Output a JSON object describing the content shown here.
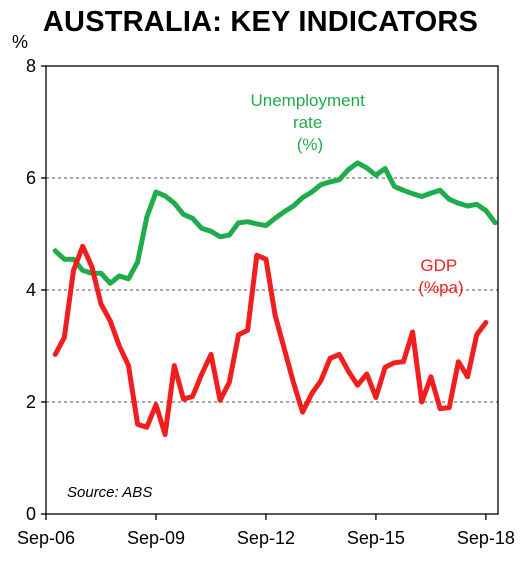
{
  "chart_data": {
    "type": "line",
    "title": "AUSTRALIA: KEY INDICATORS",
    "ylabel": "%",
    "xlabel": "",
    "ylim": [
      0,
      8
    ],
    "xlim": [
      2006.67,
      2019.0
    ],
    "yticks": [
      0,
      2,
      4,
      6,
      8
    ],
    "xticks": [
      {
        "label": "Sep-06",
        "x": 2006.67
      },
      {
        "label": "Sep-09",
        "x": 2009.67
      },
      {
        "label": "Sep-12",
        "x": 2012.67
      },
      {
        "label": "Sep-15",
        "x": 2015.67
      },
      {
        "label": "Sep-18",
        "x": 2018.67
      }
    ],
    "grid": "horizontal dashed at 2, 4, 6",
    "source": "Source: ABS",
    "series": [
      {
        "name": "Unemployment rate (%)",
        "label_lines": [
          "Unemployment",
          "rate",
          "(%)"
        ],
        "color": "#1fac4b",
        "points": [
          [
            2006.92,
            4.7
          ],
          [
            2007.17,
            4.55
          ],
          [
            2007.42,
            4.55
          ],
          [
            2007.67,
            4.35
          ],
          [
            2007.92,
            4.3
          ],
          [
            2008.17,
            4.3
          ],
          [
            2008.42,
            4.12
          ],
          [
            2008.67,
            4.25
          ],
          [
            2008.92,
            4.2
          ],
          [
            2009.17,
            4.5
          ],
          [
            2009.42,
            5.3
          ],
          [
            2009.67,
            5.75
          ],
          [
            2009.92,
            5.68
          ],
          [
            2010.17,
            5.55
          ],
          [
            2010.42,
            5.35
          ],
          [
            2010.67,
            5.28
          ],
          [
            2010.92,
            5.1
          ],
          [
            2011.17,
            5.05
          ],
          [
            2011.42,
            4.95
          ],
          [
            2011.67,
            4.98
          ],
          [
            2011.92,
            5.2
          ],
          [
            2012.17,
            5.22
          ],
          [
            2012.42,
            5.18
          ],
          [
            2012.67,
            5.15
          ],
          [
            2012.92,
            5.28
          ],
          [
            2013.17,
            5.4
          ],
          [
            2013.42,
            5.5
          ],
          [
            2013.67,
            5.65
          ],
          [
            2013.92,
            5.75
          ],
          [
            2014.17,
            5.88
          ],
          [
            2014.42,
            5.93
          ],
          [
            2014.67,
            5.97
          ],
          [
            2014.92,
            6.15
          ],
          [
            2015.17,
            6.27
          ],
          [
            2015.42,
            6.18
          ],
          [
            2015.67,
            6.05
          ],
          [
            2015.92,
            6.17
          ],
          [
            2016.17,
            5.85
          ],
          [
            2016.42,
            5.78
          ],
          [
            2016.67,
            5.72
          ],
          [
            2016.92,
            5.67
          ],
          [
            2017.17,
            5.73
          ],
          [
            2017.42,
            5.78
          ],
          [
            2017.67,
            5.62
          ],
          [
            2017.92,
            5.55
          ],
          [
            2018.17,
            5.5
          ],
          [
            2018.42,
            5.53
          ],
          [
            2018.67,
            5.42
          ],
          [
            2018.92,
            5.2
          ]
        ]
      },
      {
        "name": "GDP (%pa)",
        "label_lines": [
          "GDP",
          "(%pa)"
        ],
        "color": "#f01e1e",
        "points": [
          [
            2006.92,
            2.85
          ],
          [
            2007.17,
            3.15
          ],
          [
            2007.42,
            4.35
          ],
          [
            2007.67,
            4.78
          ],
          [
            2007.92,
            4.42
          ],
          [
            2008.17,
            3.75
          ],
          [
            2008.42,
            3.45
          ],
          [
            2008.67,
            3.0
          ],
          [
            2008.92,
            2.65
          ],
          [
            2009.17,
            1.6
          ],
          [
            2009.42,
            1.55
          ],
          [
            2009.67,
            1.95
          ],
          [
            2009.92,
            1.42
          ],
          [
            2010.17,
            2.65
          ],
          [
            2010.42,
            2.05
          ],
          [
            2010.67,
            2.1
          ],
          [
            2010.92,
            2.5
          ],
          [
            2011.17,
            2.85
          ],
          [
            2011.42,
            2.03
          ],
          [
            2011.67,
            2.35
          ],
          [
            2011.92,
            3.2
          ],
          [
            2012.17,
            3.28
          ],
          [
            2012.42,
            4.62
          ],
          [
            2012.67,
            4.55
          ],
          [
            2012.92,
            3.55
          ],
          [
            2013.17,
            2.95
          ],
          [
            2013.42,
            2.35
          ],
          [
            2013.67,
            1.82
          ],
          [
            2013.92,
            2.15
          ],
          [
            2014.17,
            2.38
          ],
          [
            2014.42,
            2.78
          ],
          [
            2014.67,
            2.85
          ],
          [
            2014.92,
            2.55
          ],
          [
            2015.17,
            2.3
          ],
          [
            2015.42,
            2.5
          ],
          [
            2015.67,
            2.08
          ],
          [
            2015.92,
            2.62
          ],
          [
            2016.17,
            2.7
          ],
          [
            2016.42,
            2.72
          ],
          [
            2016.67,
            3.25
          ],
          [
            2016.92,
            2.0
          ],
          [
            2017.17,
            2.45
          ],
          [
            2017.42,
            1.88
          ],
          [
            2017.67,
            1.9
          ],
          [
            2017.92,
            2.72
          ],
          [
            2018.17,
            2.45
          ],
          [
            2018.42,
            3.2
          ],
          [
            2018.67,
            3.42
          ]
        ]
      }
    ]
  }
}
